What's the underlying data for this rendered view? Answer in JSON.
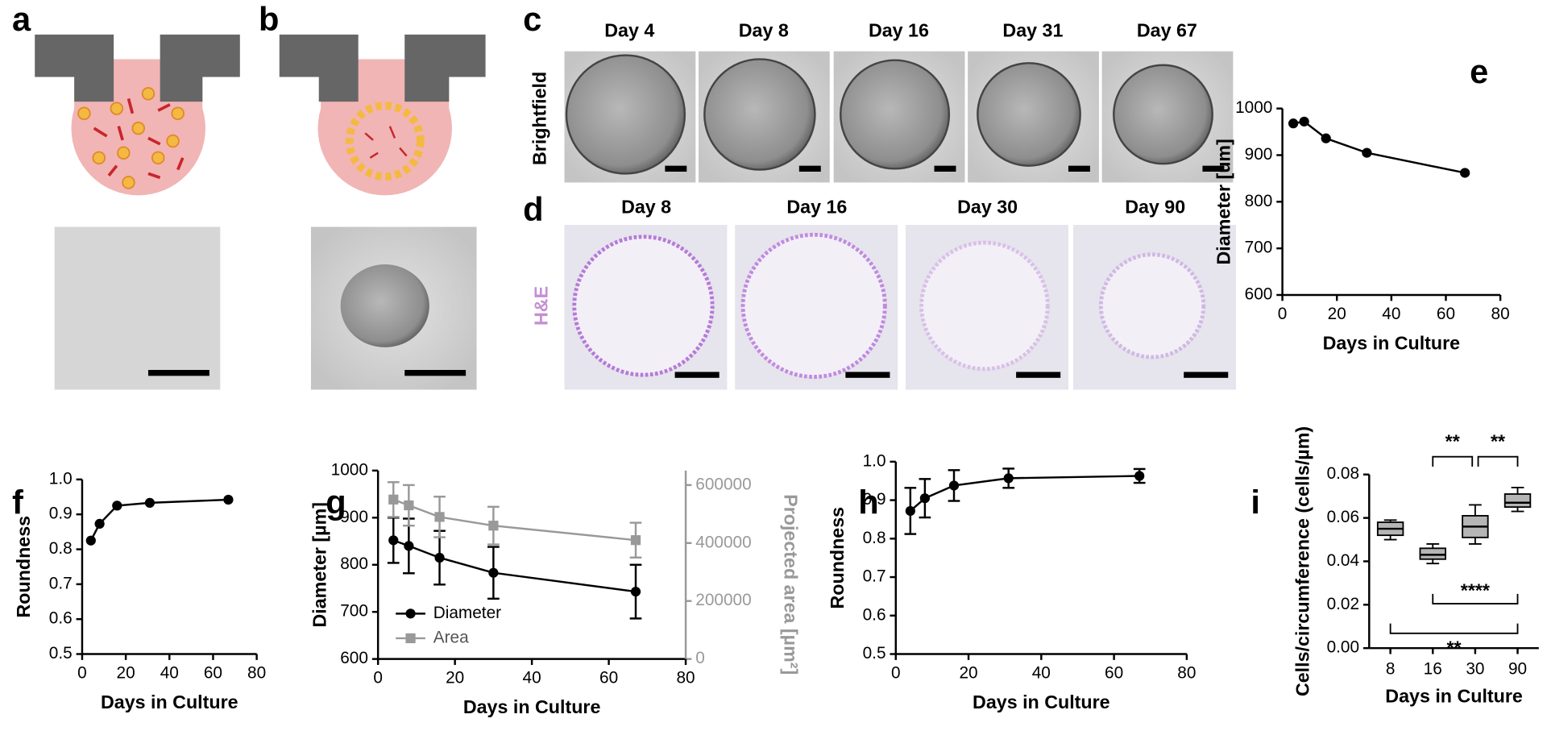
{
  "panel_labels": [
    "a",
    "b",
    "c",
    "d",
    "e",
    "f",
    "g",
    "h",
    "i"
  ],
  "brightfield": {
    "label": "Brightfield",
    "days": [
      "Day 4",
      "Day 8",
      "Day 16",
      "Day 31",
      "Day 67"
    ]
  },
  "he": {
    "label": "H&E",
    "days": [
      "Day 8",
      "Day 16",
      "Day 30",
      "Day 90"
    ]
  },
  "chart_data": [
    {
      "type": "line",
      "xlabel": "Days in Culture",
      "ylabel": "Diameter [um]",
      "x": [
        4,
        8,
        16,
        31,
        67
      ],
      "series": [
        {
          "color": "#000000",
          "values": [
            968,
            972,
            936,
            905,
            862
          ]
        }
      ],
      "xlim": [
        0,
        80
      ],
      "xticks": [
        0,
        20,
        40,
        60,
        80
      ],
      "ylim": [
        600,
        1000
      ],
      "yticks": [
        600,
        700,
        800,
        900,
        1000
      ]
    },
    {
      "type": "line",
      "xlabel": "Days in Culture",
      "ylabel": "Roundness",
      "x": [
        4,
        8,
        16,
        31,
        67
      ],
      "series": [
        {
          "color": "#000000",
          "values": [
            0.825,
            0.873,
            0.925,
            0.933,
            0.942
          ]
        }
      ],
      "xlim": [
        0,
        80
      ],
      "xticks": [
        0,
        20,
        40,
        60,
        80
      ],
      "ylim": [
        0.5,
        1
      ],
      "yticks": [
        0.5,
        0.6,
        0.7,
        0.8,
        0.9,
        {
          "value": 1,
          "label": "1.0"
        }
      ]
    },
    {
      "type": "line",
      "xlabel": "Days in Culture",
      "ylabel": "Diameter [µm]",
      "y2label": "Projected area [µm²]",
      "x": [
        4,
        8,
        16,
        30,
        67
      ],
      "series": [
        {
          "name": "Diameter",
          "color": "#000000",
          "marker": "circle",
          "values": [
            852,
            840,
            815,
            783,
            743
          ],
          "errors": [
            48,
            58,
            57,
            55,
            57
          ]
        },
        {
          "name": "Area",
          "color": "#999999",
          "marker": "square",
          "axis": "y2",
          "values": [
            550000,
            530000,
            490000,
            460000,
            410000
          ],
          "errors": [
            60000,
            70000,
            70000,
            65000,
            60000
          ]
        }
      ],
      "xlim": [
        0,
        80
      ],
      "xticks": [
        0,
        20,
        40,
        60,
        80
      ],
      "ylim": [
        600,
        1000
      ],
      "yticks": [
        600,
        700,
        800,
        900,
        1000
      ],
      "y2lim": [
        0,
        650000
      ],
      "y2ticks": [
        0,
        200000,
        400000,
        600000
      ],
      "legend": "lower left"
    },
    {
      "type": "line",
      "xlabel": "Days in Culture",
      "ylabel": "Roundness",
      "x": [
        4,
        8,
        16,
        31,
        67
      ],
      "series": [
        {
          "color": "#000000",
          "values": [
            0.872,
            0.905,
            0.938,
            0.957,
            0.963
          ],
          "errors": [
            0.06,
            0.05,
            0.04,
            0.025,
            0.018
          ]
        }
      ],
      "xlim": [
        0,
        80
      ],
      "xticks": [
        0,
        20,
        40,
        60,
        80
      ],
      "ylim": [
        0.5,
        1
      ],
      "yticks": [
        0.5,
        0.6,
        0.7,
        0.8,
        0.9,
        {
          "value": 1,
          "label": "1.0"
        }
      ]
    },
    {
      "type": "box",
      "xlabel": "Days in Culture",
      "ylabel": "Cells/circumference (cells/µm)",
      "categories": [
        "8",
        "16",
        "30",
        "90"
      ],
      "color": "#b5b5b5",
      "boxes": [
        {
          "min": 0.05,
          "q1": 0.052,
          "median": 0.055,
          "q3": 0.058,
          "max": 0.059
        },
        {
          "min": 0.039,
          "q1": 0.041,
          "median": 0.043,
          "q3": 0.046,
          "max": 0.048
        },
        {
          "min": 0.048,
          "q1": 0.051,
          "median": 0.056,
          "q3": 0.061,
          "max": 0.066
        },
        {
          "min": 0.063,
          "q1": 0.065,
          "median": 0.067,
          "q3": 0.071,
          "max": 0.074
        }
      ],
      "ylim": [
        0,
        0.08
      ],
      "yticks": [
        {
          "value": 0,
          "label": "0.00"
        },
        0.02,
        0.04,
        0.06,
        0.08
      ],
      "annotations": [
        {
          "text": "**",
          "between": [
            "16",
            "30"
          ]
        },
        {
          "text": "**",
          "between": [
            "30",
            "90"
          ]
        },
        {
          "text": "****",
          "between": [
            "16",
            "90"
          ]
        },
        {
          "text": "**",
          "between": [
            "8",
            "90"
          ]
        }
      ]
    }
  ]
}
